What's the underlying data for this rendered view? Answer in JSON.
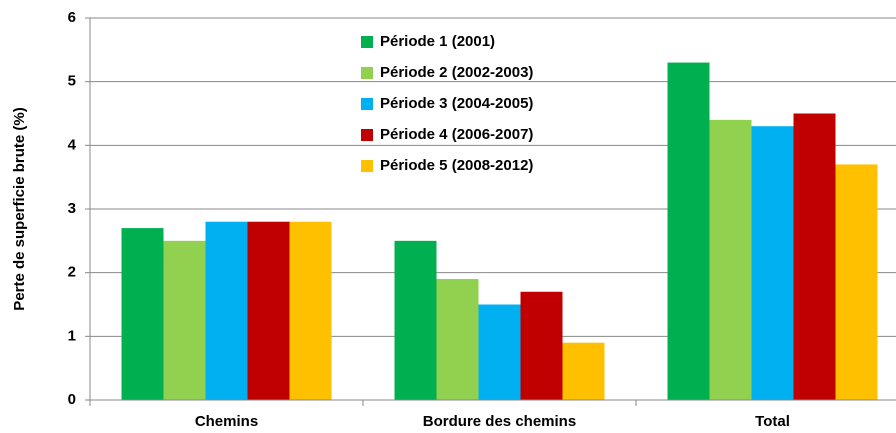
{
  "chart_data": {
    "type": "bar",
    "y_label": "Perte de superficie brute (%)",
    "categories": [
      "Chemins",
      "Bordure des chemins",
      "Total"
    ],
    "series": [
      {
        "name": "Période 1 (2001)",
        "color": "#00b050",
        "values": [
          2.7,
          2.5,
          5.3
        ]
      },
      {
        "name": "Période 2 (2002-2003)",
        "color": "#92d050",
        "values": [
          2.5,
          1.9,
          4.4
        ]
      },
      {
        "name": "Période 3 (2004-2005)",
        "color": "#00b0f0",
        "values": [
          2.8,
          1.5,
          4.3
        ]
      },
      {
        "name": "Période 4 (2006-2007)",
        "color": "#c00000",
        "values": [
          2.8,
          1.7,
          4.5
        ]
      },
      {
        "name": "Période 5 (2008-2012)",
        "color": "#ffc000",
        "values": [
          2.8,
          0.9,
          3.7
        ]
      }
    ],
    "ylim": [
      0,
      6
    ],
    "yticks": [
      0,
      1,
      2,
      3,
      4,
      5,
      6
    ],
    "grid": true,
    "legend": "top"
  }
}
